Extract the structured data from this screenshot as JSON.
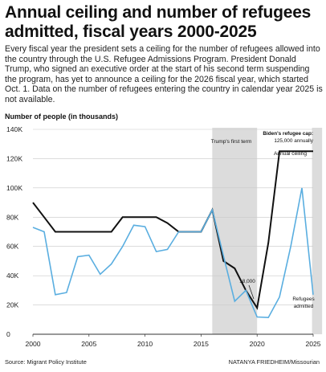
{
  "title": "Annual ceiling and number of refugees admitted, fiscal years 2000-2025",
  "subtitle": "Every fiscal year the president sets a ceiling for the number of refugees allowed into the country through the U.S. Refugee Admissions Program. President Donald Trump, who signed an executive order at the start of his second term suspending the program, has yet to announce a ceiling for the 2026 fiscal year, which started Oct. 1. Data on the number of refugees entering the country in calendar year 2025 is not available.",
  "source": "Source: Migrant Policy Institute",
  "credit": "NATANYA FRIEDHEIM/Missourian",
  "chart_data": {
    "type": "line",
    "ylabel": "Number of people (in thousands)",
    "xlabel": "",
    "xlim": [
      2000,
      2025
    ],
    "ylim": [
      0,
      140
    ],
    "grid": true,
    "x_ticks": [
      "2000",
      "2005",
      "2010",
      "2015",
      "2020",
      "2025"
    ],
    "y_ticks": [
      "0",
      "20K",
      "40K",
      "60K",
      "80K",
      "100K",
      "120K",
      "140K"
    ],
    "series": [
      {
        "name": "Annual ceiling",
        "color": "#111111",
        "x": [
          2000,
          2001,
          2002,
          2003,
          2004,
          2005,
          2006,
          2007,
          2008,
          2009,
          2010,
          2011,
          2012,
          2013,
          2014,
          2015,
          2016,
          2017,
          2018,
          2019,
          2020,
          2021,
          2022,
          2023,
          2024,
          2025
        ],
        "y": [
          90,
          80,
          70,
          70,
          70,
          70,
          70,
          70,
          80,
          80,
          80,
          80,
          76,
          70,
          70,
          70,
          85,
          50,
          45,
          30,
          18,
          62.5,
          125,
          125,
          125,
          125
        ]
      },
      {
        "name": "Refugees admitted",
        "color": "#5aaee0",
        "x": [
          2000,
          2001,
          2002,
          2003,
          2004,
          2005,
          2006,
          2007,
          2008,
          2009,
          2010,
          2011,
          2012,
          2013,
          2014,
          2015,
          2016,
          2017,
          2018,
          2019,
          2020,
          2021,
          2022,
          2023,
          2024,
          2025
        ],
        "y": [
          73,
          70,
          27,
          28.5,
          53,
          54,
          41,
          48,
          60,
          74.5,
          73.5,
          56.5,
          58,
          70,
          70,
          70,
          85,
          53.5,
          22.5,
          30,
          11.8,
          11.4,
          25.5,
          60,
          100,
          27
        ]
      }
    ],
    "shaded_regions": [
      {
        "label": "Trump's first term",
        "x": [
          2016,
          2020
        ]
      },
      {
        "label": "",
        "x": [
          2024.9,
          2025.8
        ]
      }
    ],
    "annotations": {
      "biden_cap_line1": "Biden's refugee cap:",
      "biden_cap_line2": "125,000 annually",
      "ceiling_label": "Annual ceiling",
      "refugees_label_line1": "Refugees",
      "refugees_label_line2": "admitted",
      "low_point_label": "18,000"
    }
  }
}
